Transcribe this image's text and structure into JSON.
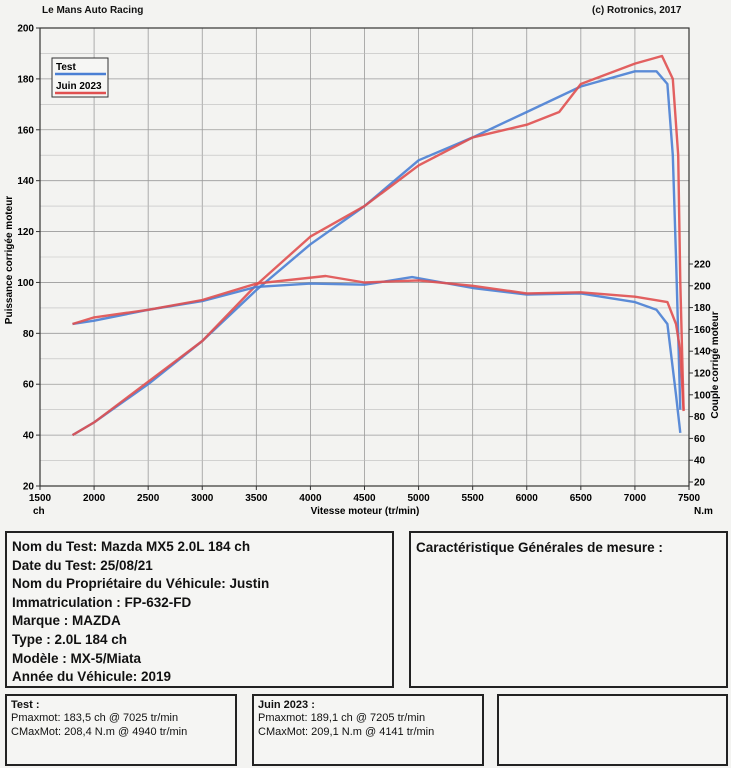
{
  "header": {
    "left": "Le Mans Auto Racing",
    "right": "(c) Rotronics, 2017"
  },
  "chart_data": {
    "type": "line",
    "xlabel": "Vitesse moteur (tr/min)",
    "x_unit": "ch",
    "x_unit_right": "N.m",
    "ylabel_left": "Puissance corrigée moteur",
    "ylabel_right": "Couple corrigé moteur",
    "xlim": [
      1500,
      7500
    ],
    "ylim_left": [
      20,
      200
    ],
    "ylim_right": [
      20,
      220
    ],
    "x_ticks": [
      1500,
      2000,
      2500,
      3000,
      3500,
      4000,
      4500,
      5000,
      5500,
      6000,
      6500,
      7000,
      7500
    ],
    "y_ticks_left": [
      20,
      40,
      60,
      80,
      100,
      120,
      140,
      160,
      180,
      200
    ],
    "y_ticks_right": [
      20,
      40,
      60,
      80,
      100,
      120,
      140,
      160,
      180,
      200,
      220
    ],
    "grid": true,
    "legend_position": "top-left",
    "legend": [
      {
        "name": "Test",
        "color": "#4a7fd4"
      },
      {
        "name": "Juin 2023",
        "color": "#e05050"
      }
    ],
    "series": [
      {
        "name": "Test",
        "quantity": "power",
        "axis": "left",
        "color": "#4a7fd4",
        "points": [
          [
            1800,
            40
          ],
          [
            2000,
            45
          ],
          [
            2500,
            60
          ],
          [
            3000,
            77
          ],
          [
            3500,
            97
          ],
          [
            4000,
            115
          ],
          [
            4500,
            130
          ],
          [
            5000,
            148
          ],
          [
            5500,
            157
          ],
          [
            6000,
            167
          ],
          [
            6500,
            177
          ],
          [
            7000,
            183
          ],
          [
            7200,
            183
          ],
          [
            7300,
            178
          ],
          [
            7350,
            150
          ],
          [
            7380,
            110
          ],
          [
            7420,
            50
          ]
        ]
      },
      {
        "name": "Juin 2023",
        "quantity": "power",
        "axis": "left",
        "color": "#e05050",
        "points": [
          [
            1800,
            40
          ],
          [
            2000,
            45
          ],
          [
            2500,
            61
          ],
          [
            3000,
            77
          ],
          [
            3500,
            99
          ],
          [
            4000,
            118
          ],
          [
            4500,
            130
          ],
          [
            5000,
            146
          ],
          [
            5500,
            157
          ],
          [
            6000,
            162
          ],
          [
            6300,
            167
          ],
          [
            6500,
            178
          ],
          [
            7000,
            186
          ],
          [
            7250,
            189
          ],
          [
            7350,
            180
          ],
          [
            7400,
            150
          ],
          [
            7420,
            100
          ],
          [
            7450,
            50
          ]
        ]
      },
      {
        "name": "Test",
        "quantity": "torque",
        "axis": "right",
        "color": "#4a7fd4",
        "points": [
          [
            1800,
            165
          ],
          [
            2000,
            168
          ],
          [
            2500,
            178
          ],
          [
            3000,
            186
          ],
          [
            3500,
            199
          ],
          [
            4000,
            202
          ],
          [
            4500,
            201
          ],
          [
            4940,
            208
          ],
          [
            5500,
            198
          ],
          [
            6000,
            192
          ],
          [
            6500,
            193
          ],
          [
            7000,
            185
          ],
          [
            7200,
            178
          ],
          [
            7300,
            165
          ],
          [
            7380,
            100
          ],
          [
            7420,
            65
          ]
        ]
      },
      {
        "name": "Juin 2023",
        "quantity": "torque",
        "axis": "right",
        "color": "#e05050",
        "points": [
          [
            1800,
            165
          ],
          [
            2000,
            171
          ],
          [
            2500,
            178
          ],
          [
            3000,
            187
          ],
          [
            3500,
            202
          ],
          [
            4141,
            209
          ],
          [
            4500,
            203
          ],
          [
            5000,
            205
          ],
          [
            5500,
            200
          ],
          [
            6000,
            193
          ],
          [
            6500,
            194
          ],
          [
            7000,
            190
          ],
          [
            7300,
            185
          ],
          [
            7380,
            165
          ],
          [
            7420,
            140
          ],
          [
            7450,
            85
          ]
        ]
      }
    ]
  },
  "info": {
    "lines": [
      "Nom du Test: Mazda MX5 2.0L 184 ch",
      "Date du Test: 25/08/21",
      "Nom du Propriétaire du Véhicule: Justin",
      "Immatriculation   : FP-632-FD",
      "Marque  : MAZDA",
      "Type  : 2.0L 184 ch",
      "Modèle  : MX-5/Miata",
      "Année du Véhicule: 2019"
    ]
  },
  "characteristics": {
    "title": "Caractéristique Générales de mesure :"
  },
  "stats": [
    {
      "title": "Test :",
      "pmax": "Pmaxmot: 183,5 ch @ 7025 tr/min",
      "cmax": "CMaxMot: 208,4 N.m @ 4940 tr/min"
    },
    {
      "title": "Juin 2023 :",
      "pmax": "Pmaxmot: 189,1 ch @ 7205 tr/min",
      "cmax": "CMaxMot: 209,1 N.m @ 4141 tr/min"
    }
  ]
}
